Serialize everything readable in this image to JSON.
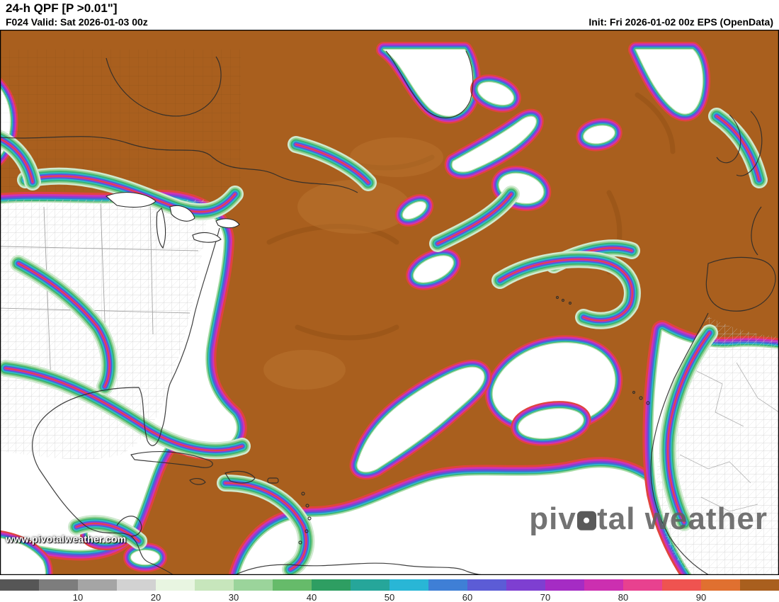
{
  "header": {
    "title": "24-h QPF [P >0.01\"]",
    "valid": "F024 Valid: Sat 2026-01-03 00z",
    "init": "Init: Fri 2026-01-02 00z EPS (OpenData)"
  },
  "watermark": "www.pivotalweather.com",
  "logo": {
    "part1": "piv",
    "part2": "tal weather"
  },
  "colorbar": {
    "tick_labels": [
      "10",
      "20",
      "30",
      "40",
      "50",
      "60",
      "70",
      "80",
      "90"
    ],
    "tick_positions": [
      10,
      20,
      30,
      40,
      50,
      60,
      70,
      80,
      90
    ],
    "segment_values": [
      0,
      5,
      10,
      15,
      20,
      25,
      30,
      35,
      40,
      45,
      50,
      55,
      60,
      65,
      70,
      75,
      80,
      85,
      90,
      95
    ],
    "segments": [
      "#565656",
      "#7d7d7d",
      "#a5a5a5",
      "#d2d2d2",
      "#e8f5e1",
      "#c7e6bc",
      "#9bd49b",
      "#66bb6a",
      "#2e9e62",
      "#26a69a",
      "#29b6d6",
      "#3f7fd6",
      "#5c5cd6",
      "#7e3fd1",
      "#a52cc4",
      "#cc2fb0",
      "#e8418f",
      "#ef5350",
      "#e07030",
      "#a95f1e"
    ]
  },
  "map_bands": {
    "low_fill": "#ffffff",
    "high_fill": "#a95f1e",
    "hole": [
      [
        "#e0443e",
        22
      ],
      [
        "#cf33b4",
        17.5
      ],
      [
        "#8a3fd1",
        13.5
      ],
      [
        "#3b6fd4",
        10
      ],
      [
        "#2fb7c9",
        7
      ],
      [
        "#3cb371",
        4.8
      ],
      [
        "#a5dca5",
        2.6
      ]
    ],
    "hole_big": [
      [
        "#e0443e",
        30
      ],
      [
        "#cf33b4",
        24
      ],
      [
        "#8a3fd1",
        19
      ],
      [
        "#3b6fd4",
        14.5
      ],
      [
        "#2fb7c9",
        10.5
      ],
      [
        "#3cb371",
        7
      ],
      [
        "#a5dca5",
        3.8
      ]
    ],
    "ribbon": [
      [
        "#cfead0",
        24
      ],
      [
        "#8fd08f",
        19
      ],
      [
        "#3cb371",
        15
      ],
      [
        "#2fb7c9",
        11
      ],
      [
        "#3b6fd4",
        7.5
      ],
      [
        "#8a3fd1",
        5
      ],
      [
        "#cf33b4",
        3
      ],
      [
        "#e0443e",
        1.6
      ]
    ]
  }
}
